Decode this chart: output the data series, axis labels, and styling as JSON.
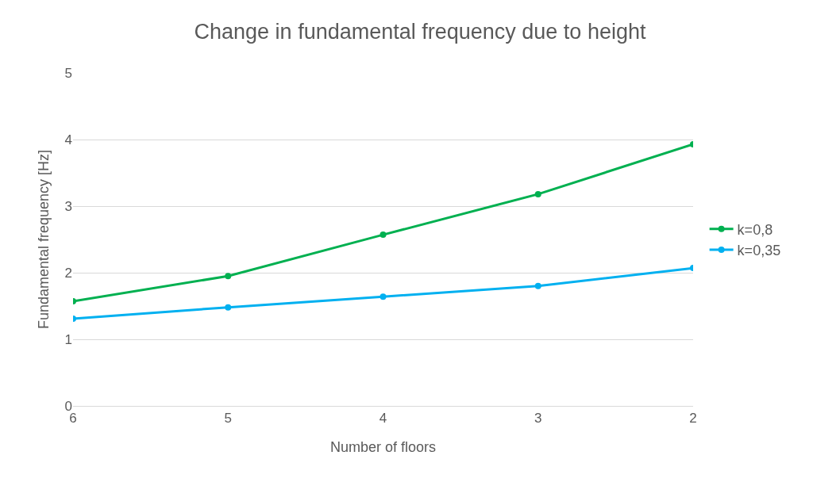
{
  "chart_data": {
    "type": "line",
    "title": "Change in fundamental frequency due to height",
    "xlabel": "Number of floors",
    "ylabel": "Fundamental frequency [Hz]",
    "categories": [
      "6",
      "5",
      "4",
      "3",
      "2"
    ],
    "series": [
      {
        "name": "k=0,8",
        "color": "#00b050",
        "values": [
          1.57,
          1.95,
          2.57,
          3.18,
          3.93
        ]
      },
      {
        "name": "k=0,35",
        "color": "#00b0f0",
        "values": [
          1.31,
          1.48,
          1.64,
          1.8,
          2.07
        ]
      }
    ],
    "ylim": [
      0,
      5
    ],
    "yticks": [
      0,
      1,
      2,
      3,
      4,
      5
    ],
    "grid": "y",
    "legend": "right",
    "marker": "circle",
    "line_style": "solid"
  }
}
